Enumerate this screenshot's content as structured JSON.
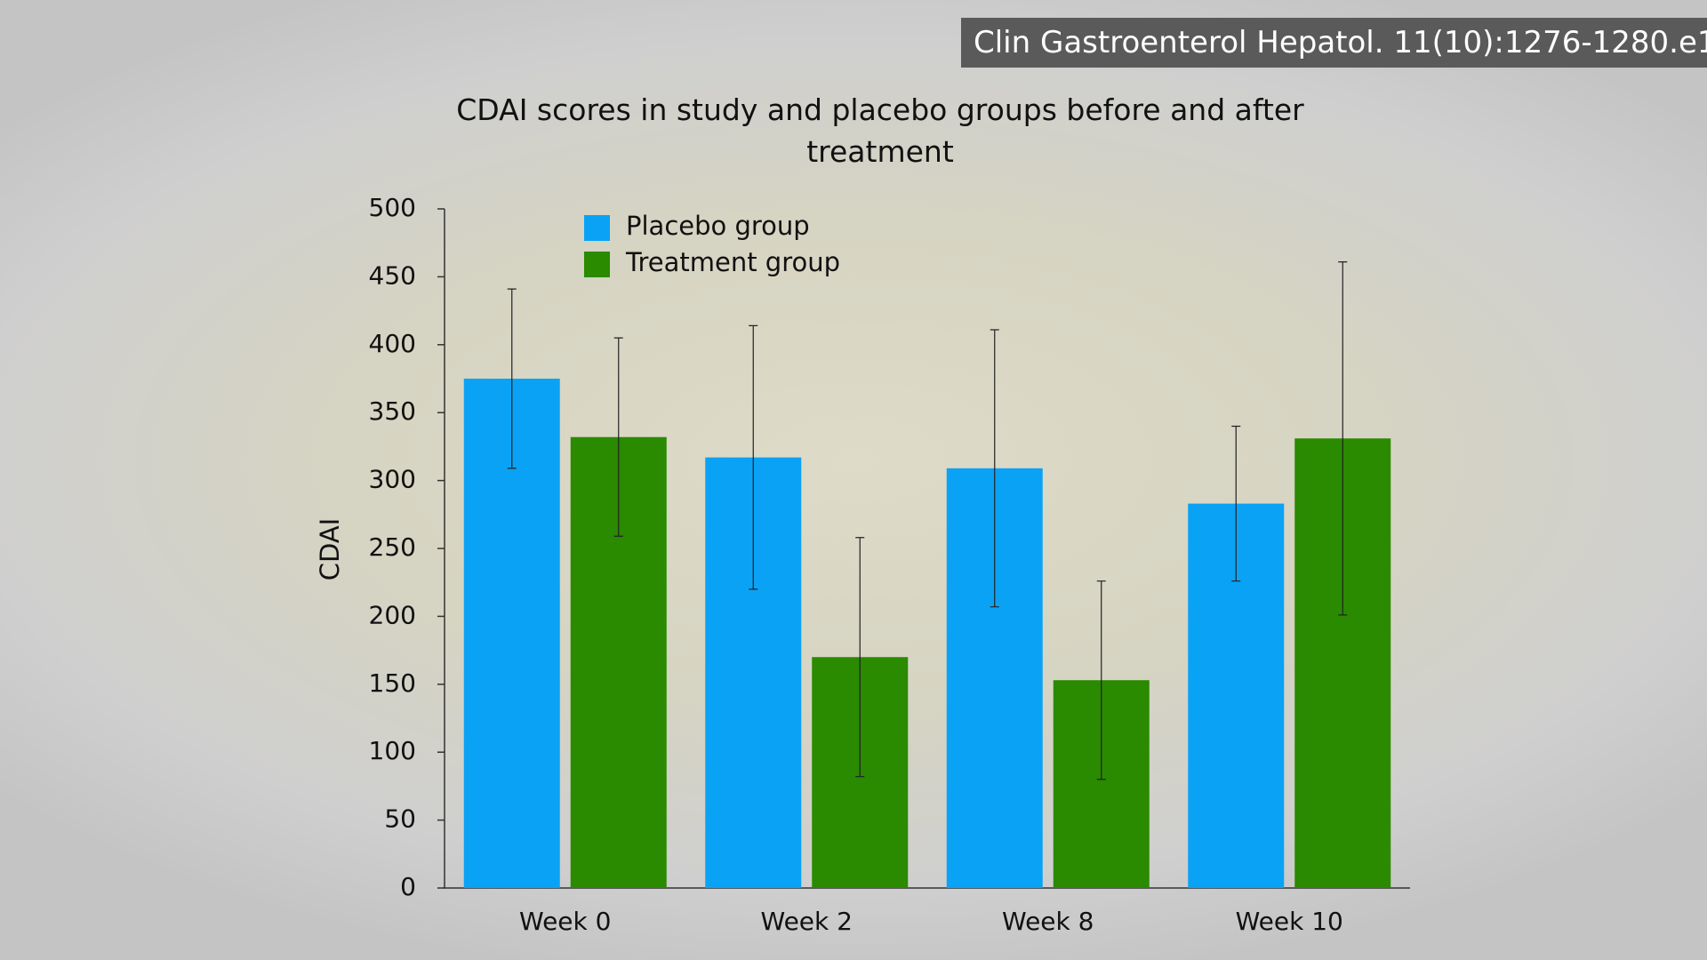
{
  "citation": "Clin Gastroenterol Hepatol. 11(10):1276-1280.e1",
  "chart_data": {
    "type": "bar",
    "title": "CDAI scores in study and placebo groups before and after treatment",
    "y_label": "CDAI",
    "categories": [
      "Week 0",
      "Week 2",
      "Week 8",
      "Week 10"
    ],
    "series": [
      {
        "name": "Placebo group",
        "color": "#0aa2f5",
        "values": [
          375,
          317,
          309,
          283
        ],
        "errors": [
          66,
          97,
          102,
          57
        ]
      },
      {
        "name": "Treatment group",
        "color": "#2a8a00",
        "values": [
          332,
          170,
          153,
          331
        ],
        "errors": [
          73,
          88,
          73,
          130
        ]
      }
    ],
    "ylim": [
      0,
      500
    ],
    "yticks": [
      0,
      50,
      100,
      150,
      200,
      250,
      300,
      350,
      400,
      450,
      500
    ],
    "grid": false,
    "legend": "top-left"
  }
}
